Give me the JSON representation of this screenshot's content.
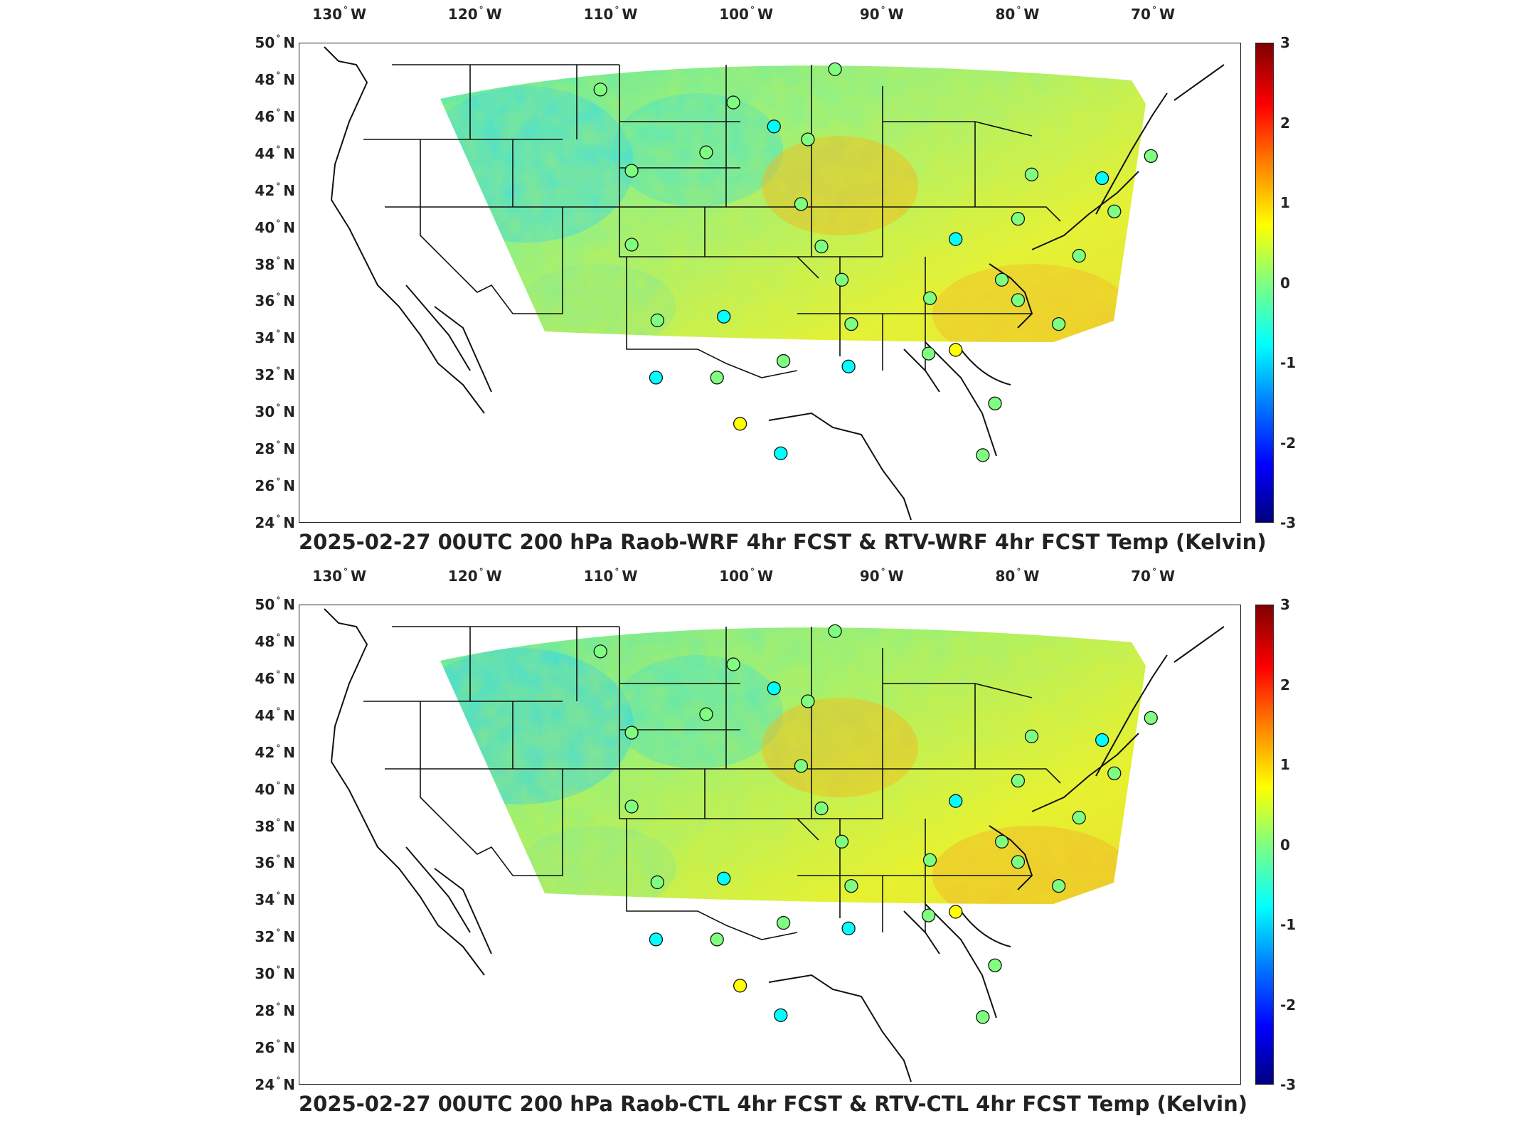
{
  "lon_ticks": [
    {
      "deg": "130",
      "hemi": "W"
    },
    {
      "deg": "120",
      "hemi": "W"
    },
    {
      "deg": "110",
      "hemi": "W"
    },
    {
      "deg": "100",
      "hemi": "W"
    },
    {
      "deg": "90",
      "hemi": "W"
    },
    {
      "deg": "80",
      "hemi": "W"
    },
    {
      "deg": "70",
      "hemi": "W"
    }
  ],
  "lat_ticks": [
    {
      "deg": "50",
      "hemi": "N"
    },
    {
      "deg": "48",
      "hemi": "N"
    },
    {
      "deg": "46",
      "hemi": "N"
    },
    {
      "deg": "44",
      "hemi": "N"
    },
    {
      "deg": "42",
      "hemi": "N"
    },
    {
      "deg": "40",
      "hemi": "N"
    },
    {
      "deg": "38",
      "hemi": "N"
    },
    {
      "deg": "36",
      "hemi": "N"
    },
    {
      "deg": "34",
      "hemi": "N"
    },
    {
      "deg": "32",
      "hemi": "N"
    },
    {
      "deg": "30",
      "hemi": "N"
    },
    {
      "deg": "28",
      "hemi": "N"
    },
    {
      "deg": "26",
      "hemi": "N"
    },
    {
      "deg": "24",
      "hemi": "N"
    }
  ],
  "colorbar": {
    "ticks": [
      "3",
      "2",
      "1",
      "0",
      "-1",
      "-2",
      "-3"
    ],
    "min": -3,
    "max": 3,
    "colormap": [
      "#00007f",
      "#0000ff",
      "#007fff",
      "#00ffff",
      "#7fff7f",
      "#ffff00",
      "#ff7f00",
      "#ff0000",
      "#7f0000"
    ]
  },
  "panels": [
    {
      "title": "2025-02-27 00UTC 200 hPa Raob-WRF 4hr FCST & RTV-WRF 4hr FCST Temp (Kelvin)"
    },
    {
      "title": "2025-02-27 00UTC 200 hPa Raob-CTL 4hr FCST & RTV-CTL 4hr FCST Temp (Kelvin)"
    }
  ],
  "stations_top": [
    {
      "lon": -110.8,
      "lat": 47.5,
      "v": -0.3
    },
    {
      "lon": -101.0,
      "lat": 46.8,
      "v": 0.2
    },
    {
      "lon": -98.0,
      "lat": 45.5,
      "v": -0.5
    },
    {
      "lon": -93.5,
      "lat": 48.6,
      "v": -0.2
    },
    {
      "lon": -95.5,
      "lat": 44.8,
      "v": -0.3
    },
    {
      "lon": -103.0,
      "lat": 44.1,
      "v": 0.0
    },
    {
      "lon": -108.5,
      "lat": 43.1,
      "v": -0.1
    },
    {
      "lon": -96.0,
      "lat": 41.3,
      "v": 0.0
    },
    {
      "lon": -108.5,
      "lat": 39.1,
      "v": -0.2
    },
    {
      "lon": -94.5,
      "lat": 39.0,
      "v": -0.1
    },
    {
      "lon": -93.0,
      "lat": 37.2,
      "v": 0.0
    },
    {
      "lon": -106.6,
      "lat": 35.0,
      "v": 0.0
    },
    {
      "lon": -101.7,
      "lat": 35.2,
      "v": -0.7
    },
    {
      "lon": -92.3,
      "lat": 34.8,
      "v": -0.2
    },
    {
      "lon": -106.7,
      "lat": 31.9,
      "v": -0.4
    },
    {
      "lon": -102.2,
      "lat": 31.9,
      "v": 0.2
    },
    {
      "lon": -97.3,
      "lat": 32.8,
      "v": -0.1
    },
    {
      "lon": -92.5,
      "lat": 32.5,
      "v": -0.6
    },
    {
      "lon": -100.5,
      "lat": 29.4,
      "v": 0.4
    },
    {
      "lon": -97.5,
      "lat": 27.8,
      "v": -0.6
    },
    {
      "lon": -86.5,
      "lat": 36.2,
      "v": 0.0
    },
    {
      "lon": -86.6,
      "lat": 33.2,
      "v": 0.3
    },
    {
      "lon": -84.6,
      "lat": 33.4,
      "v": 0.5
    },
    {
      "lon": -81.7,
      "lat": 30.5,
      "v": -0.2
    },
    {
      "lon": -82.6,
      "lat": 27.7,
      "v": 0.3
    },
    {
      "lon": -84.6,
      "lat": 39.4,
      "v": -1.0
    },
    {
      "lon": -80.0,
      "lat": 40.5,
      "v": 0.1
    },
    {
      "lon": -81.2,
      "lat": 37.2,
      "v": -0.1
    },
    {
      "lon": -80.0,
      "lat": 36.1,
      "v": 0.0
    },
    {
      "lon": -77.0,
      "lat": 34.8,
      "v": 0.1
    },
    {
      "lon": -75.5,
      "lat": 38.5,
      "v": 0.2
    },
    {
      "lon": -79.0,
      "lat": 42.9,
      "v": -0.1
    },
    {
      "lon": -73.8,
      "lat": 42.7,
      "v": -0.5
    },
    {
      "lon": -70.2,
      "lat": 43.9,
      "v": 0.2
    },
    {
      "lon": -72.9,
      "lat": 40.9,
      "v": 0.0
    }
  ],
  "stations_bottom": [
    {
      "lon": -110.8,
      "lat": 47.5,
      "v": -0.3
    },
    {
      "lon": -101.0,
      "lat": 46.8,
      "v": 0.2
    },
    {
      "lon": -98.0,
      "lat": 45.5,
      "v": -0.5
    },
    {
      "lon": -93.5,
      "lat": 48.6,
      "v": -0.2
    },
    {
      "lon": -95.5,
      "lat": 44.8,
      "v": -0.3
    },
    {
      "lon": -103.0,
      "lat": 44.1,
      "v": 0.0
    },
    {
      "lon": -108.5,
      "lat": 43.1,
      "v": -0.1
    },
    {
      "lon": -96.0,
      "lat": 41.3,
      "v": 0.0
    },
    {
      "lon": -108.5,
      "lat": 39.1,
      "v": -0.2
    },
    {
      "lon": -94.5,
      "lat": 39.0,
      "v": -0.1
    },
    {
      "lon": -93.0,
      "lat": 37.2,
      "v": 0.0
    },
    {
      "lon": -106.6,
      "lat": 35.0,
      "v": 0.0
    },
    {
      "lon": -101.7,
      "lat": 35.2,
      "v": -0.7
    },
    {
      "lon": -92.3,
      "lat": 34.8,
      "v": -0.2
    },
    {
      "lon": -106.7,
      "lat": 31.9,
      "v": -0.4
    },
    {
      "lon": -102.2,
      "lat": 31.9,
      "v": -0.2
    },
    {
      "lon": -97.3,
      "lat": 32.8,
      "v": 0.2
    },
    {
      "lon": -92.5,
      "lat": 32.5,
      "v": -0.6
    },
    {
      "lon": -100.5,
      "lat": 29.4,
      "v": 0.4
    },
    {
      "lon": -97.5,
      "lat": 27.8,
      "v": -0.6
    },
    {
      "lon": -86.5,
      "lat": 36.2,
      "v": 0.0
    },
    {
      "lon": -86.6,
      "lat": 33.2,
      "v": 0.3
    },
    {
      "lon": -84.6,
      "lat": 33.4,
      "v": 0.5
    },
    {
      "lon": -81.7,
      "lat": 30.5,
      "v": -0.2
    },
    {
      "lon": -82.6,
      "lat": 27.7,
      "v": 0.3
    },
    {
      "lon": -84.6,
      "lat": 39.4,
      "v": -1.0
    },
    {
      "lon": -80.0,
      "lat": 40.5,
      "v": 0.1
    },
    {
      "lon": -81.2,
      "lat": 37.2,
      "v": -0.1
    },
    {
      "lon": -80.0,
      "lat": 36.1,
      "v": 0.0
    },
    {
      "lon": -77.0,
      "lat": 34.8,
      "v": 0.1
    },
    {
      "lon": -75.5,
      "lat": 38.5,
      "v": 0.2
    },
    {
      "lon": -79.0,
      "lat": 42.9,
      "v": -0.1
    },
    {
      "lon": -73.8,
      "lat": 42.7,
      "v": -0.5
    },
    {
      "lon": -70.2,
      "lat": 43.9,
      "v": 0.2
    },
    {
      "lon": -72.9,
      "lat": 40.9,
      "v": 0.0
    }
  ]
}
